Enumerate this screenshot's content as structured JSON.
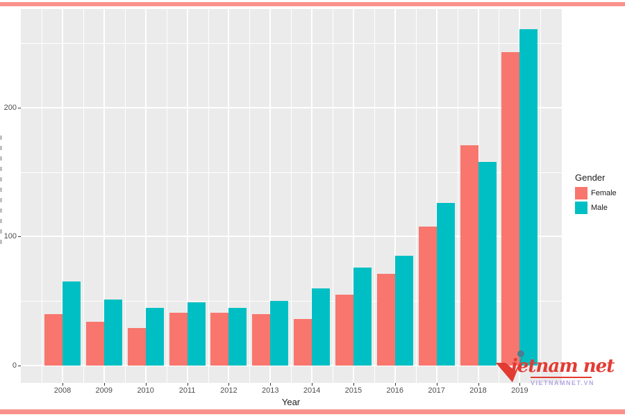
{
  "chart_data": {
    "type": "bar",
    "title": "",
    "categories": [
      "2008",
      "2009",
      "2010",
      "2011",
      "2012",
      "2013",
      "2014",
      "2015",
      "2016",
      "2017",
      "2018",
      "2019"
    ],
    "series": [
      {
        "name": "Female",
        "color": "#F8766D",
        "values": [
          40,
          34,
          29,
          41,
          41,
          40,
          36,
          55,
          71,
          108,
          171,
          243
        ]
      },
      {
        "name": "Male",
        "color": "#00BFC4",
        "values": [
          65,
          51,
          45,
          49,
          45,
          50,
          60,
          76,
          85,
          126,
          158,
          261
        ]
      }
    ],
    "xlabel": "Year",
    "ylabel": "",
    "y_ticks": [
      0,
      100,
      200
    ],
    "y_minor_ticks": [
      50,
      150,
      250
    ],
    "ylim": [
      -13.5,
      276.5
    ],
    "grid": true,
    "legend_position": "right",
    "legend_title": "Gender",
    "panel_bg": "#EBEBEB",
    "grid_color": "#FFFFFF",
    "axis_text_color": "#4D4D4D",
    "bar_layout": "dodged"
  },
  "legend": {
    "title": "Gender",
    "items": [
      {
        "label": "Female",
        "color": "#F8766D"
      },
      {
        "label": "Male",
        "color": "#00BFC4"
      }
    ]
  },
  "frame": {
    "border_color": "#F9928C"
  },
  "watermark": {
    "logo_text_1": "ietnam",
    "logo_text_2": "net",
    "subtext": "VIETNAMNET.VN",
    "logo_color": "#E23B32",
    "subtext_color": "#B4A7E3",
    "dot_color": "#4A7E92"
  }
}
